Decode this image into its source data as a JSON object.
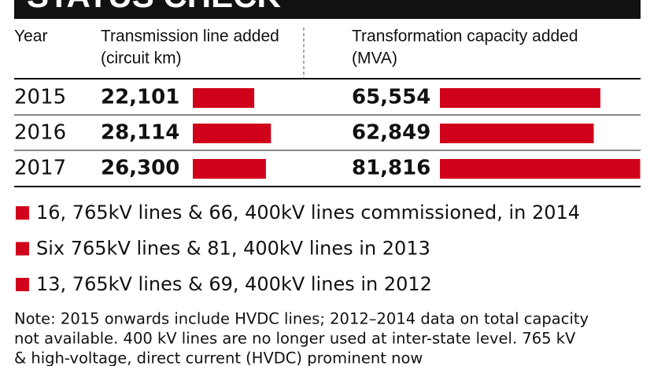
{
  "chart_data": {
    "type": "bar",
    "title": "STATUS CHECK",
    "category_label": "Year",
    "categories": [
      "2015",
      "2016",
      "2017"
    ],
    "series": [
      {
        "name": "Transmission line added",
        "unit": "(circuit km)",
        "color": "#d0021b",
        "xlim": [
          0,
          30000
        ],
        "values": [
          22101,
          28114,
          26300
        ],
        "value_labels": [
          "22,101",
          "28,114",
          "26,300"
        ]
      },
      {
        "name": "Transformation capacity added",
        "unit": "(MVA)",
        "color": "#d0021b",
        "xlim": [
          0,
          90000
        ],
        "values": [
          65554,
          62849,
          81816
        ],
        "value_labels": [
          "65,554",
          "62,849",
          "81,816"
        ]
      }
    ],
    "bullets": [
      "16, 765kV lines & 66, 400kV lines commissioned, in 2014",
      "Six 765kV lines & 81, 400kV lines in 2013",
      "13, 765kV lines & 69, 400kV lines in 2012"
    ],
    "note": [
      "Note: 2015 onwards include HVDC lines; 2012–2014 data on total capacity",
      "not available. 400 kV lines are no longer used at inter-state level. 765 kV",
      "& high-voltage, direct current (HVDC) prominent now"
    ]
  }
}
